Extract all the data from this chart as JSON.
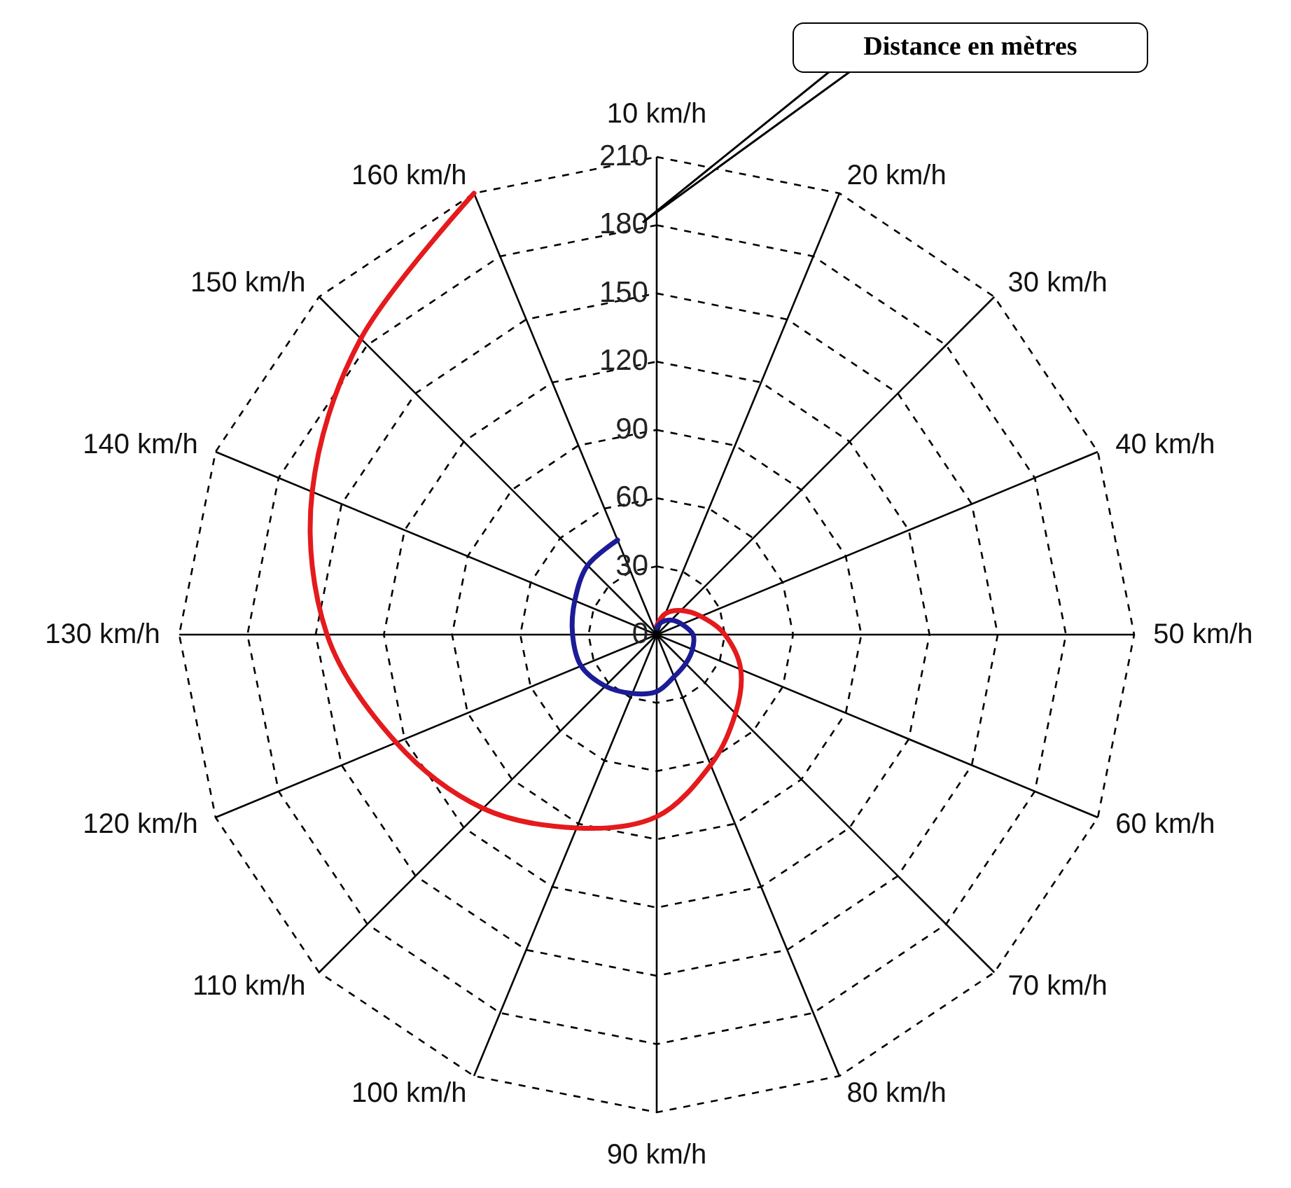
{
  "chart_data": {
    "type": "radar",
    "categories": [
      "10 km/h",
      "20 km/h",
      "30 km/h",
      "40 km/h",
      "50 km/h",
      "60 km/h",
      "70 km/h",
      "80 km/h",
      "90 km/h",
      "100 km/h",
      "110 km/h",
      "120 km/h",
      "130 km/h",
      "140 km/h",
      "150 km/h",
      "160 km/h"
    ],
    "ylim": [
      0,
      210
    ],
    "yticks": [
      0,
      30,
      60,
      90,
      120,
      150,
      180,
      210
    ],
    "grid": true,
    "line_style": "solid",
    "annotations": [
      "Distance en mètres"
    ],
    "series": [
      {
        "color": "#e41a1c",
        "values": [
          4,
          10,
          15,
          21,
          30,
          40,
          49,
          62,
          80,
          92,
          108,
          124,
          145,
          164,
          184,
          210
        ]
      },
      {
        "color": "#1c1c96",
        "values": [
          3,
          6,
          9,
          12,
          16,
          17,
          18,
          20,
          25,
          28,
          32,
          36,
          37,
          39,
          43,
          45
        ]
      }
    ]
  }
}
